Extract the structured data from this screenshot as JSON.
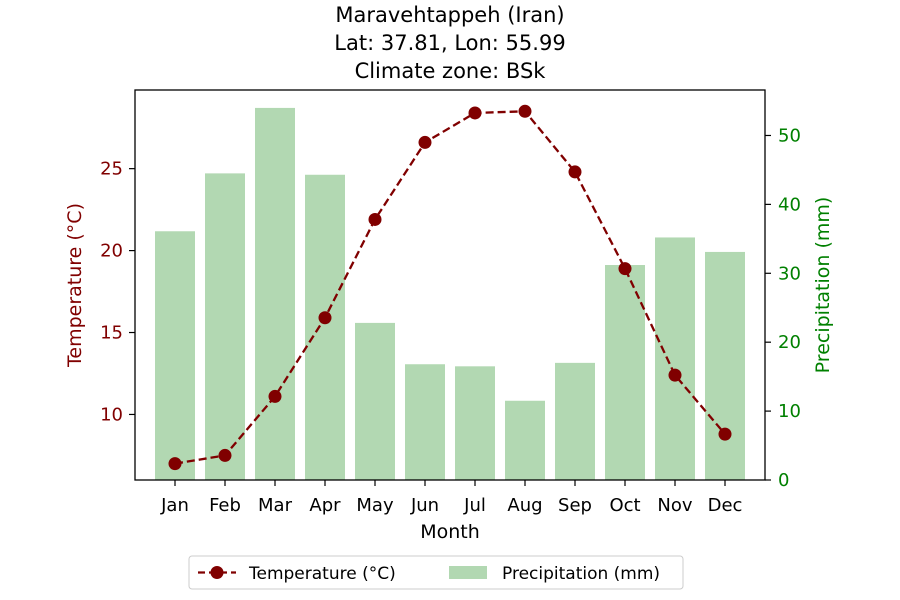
{
  "chart_data": {
    "type": "bar+line",
    "title_lines": [
      "Maravehtappeh (Iran)",
      "Lat: 37.81, Lon: 55.99",
      "Climate zone: BSk"
    ],
    "xlabel": "Month",
    "categories": [
      "Jan",
      "Feb",
      "Mar",
      "Apr",
      "May",
      "Jun",
      "Jul",
      "Aug",
      "Sep",
      "Oct",
      "Nov",
      "Dec"
    ],
    "temperature": {
      "name": "Temperature (°C)",
      "axis_label": "Temperature (°C)",
      "color": "#800000",
      "ylim": [
        6.0,
        29.8
      ],
      "ticks": [
        10,
        15,
        20,
        25
      ],
      "values": [
        7.0,
        7.5,
        11.1,
        15.9,
        21.9,
        26.6,
        28.4,
        28.5,
        24.8,
        18.9,
        12.4,
        8.8
      ]
    },
    "precipitation": {
      "name": "Precipitation (mm)",
      "axis_label": "Precipitation (mm)",
      "color": "#b2d8b2",
      "axis_color": "#008000",
      "ylim": [
        0,
        56.6
      ],
      "ticks": [
        0,
        10,
        20,
        30,
        40,
        50
      ],
      "values": [
        36.1,
        44.5,
        54.0,
        44.3,
        22.8,
        16.8,
        16.5,
        11.5,
        17.0,
        31.2,
        35.2,
        33.1
      ]
    },
    "legend_position": "bottom-center"
  }
}
